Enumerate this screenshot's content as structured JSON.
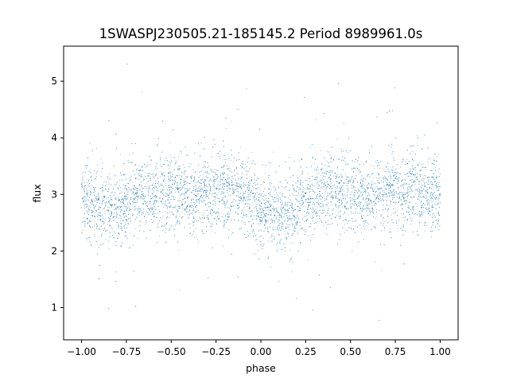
{
  "chart_data": {
    "type": "scatter",
    "title": "1SWASPJ230505.21-185145.2 Period 8989961.0s",
    "xlabel": "phase",
    "ylabel": "flux",
    "xlim": [
      -1.1,
      1.1
    ],
    "ylim": [
      0.43,
      5.62
    ],
    "xticks": [
      -1.0,
      -0.75,
      -0.5,
      -0.25,
      0.0,
      0.25,
      0.5,
      0.75,
      1.0
    ],
    "xtick_labels": [
      "−1.00",
      "−0.75",
      "−0.50",
      "−0.25",
      "0.00",
      "0.25",
      "0.50",
      "0.75",
      "1.00"
    ],
    "yticks": [
      1,
      2,
      3,
      4,
      5
    ],
    "ytick_labels": [
      "1",
      "2",
      "3",
      "4",
      "5"
    ],
    "grid": false,
    "marker_color": "#1f77b4",
    "marker": "point",
    "series": [
      {
        "x_range": [
          -1.0,
          1.0
        ],
        "mean_flux_profile": {
          "phase": [
            -1.0,
            -0.9,
            -0.8,
            -0.7,
            -0.6,
            -0.5,
            -0.4,
            -0.3,
            -0.2,
            -0.1,
            0.0,
            0.1,
            0.2,
            0.3,
            0.4,
            0.5,
            0.6,
            0.7,
            0.8,
            0.9,
            1.0
          ],
          "flux": [
            2.95,
            2.75,
            2.7,
            3.0,
            3.05,
            3.05,
            2.95,
            3.0,
            3.1,
            3.0,
            2.75,
            2.6,
            2.75,
            3.0,
            3.05,
            3.05,
            2.95,
            3.05,
            3.1,
            3.0,
            2.95
          ]
        },
        "flux_range": [
          0.65,
          5.35
        ]
      }
    ]
  }
}
